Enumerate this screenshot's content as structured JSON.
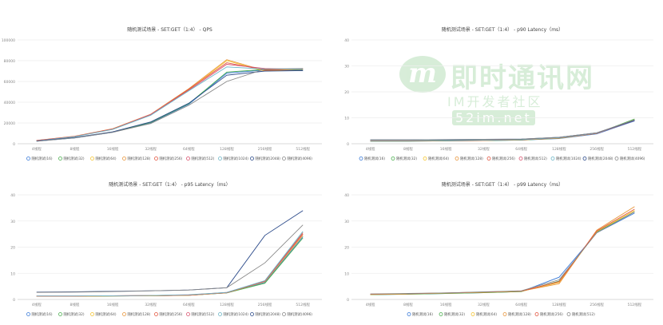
{
  "watermark": {
    "logo": "m",
    "title": "即时通讯网",
    "subtitle": "IM开发者社区",
    "badge": "52im.net"
  },
  "chart_data": [
    {
      "type": "line",
      "title": "随机测试场景 - SET:GET（1:4） - QPS",
      "categories": [
        "4线程",
        "8线程",
        "16线程",
        "32线程",
        "64线程",
        "128线程",
        "256线程",
        "512线程"
      ],
      "ylim": [
        0,
        100000
      ],
      "yticks": [
        "0",
        "20000",
        "40000",
        "60000",
        "80000",
        "100000"
      ],
      "series": [
        {
          "name": "随机测试(16)",
          "color": "#3b7bd8",
          "values": [
            2500,
            5500,
            11000,
            20000,
            38000,
            68000,
            71000,
            70500
          ]
        },
        {
          "name": "随机测试(32)",
          "color": "#4caf50",
          "values": [
            2600,
            5800,
            11200,
            20500,
            38500,
            69000,
            71500,
            71000
          ]
        },
        {
          "name": "随机测试(64)",
          "color": "#f5c531",
          "values": [
            3000,
            7000,
            14000,
            28000,
            52000,
            80000,
            70000,
            72000
          ]
        },
        {
          "name": "随机测试(128)",
          "color": "#e8963c",
          "values": [
            3200,
            7200,
            14500,
            28500,
            53000,
            81000,
            70500,
            72500
          ]
        },
        {
          "name": "随机测试(256)",
          "color": "#e2553f",
          "values": [
            3100,
            7100,
            14200,
            28000,
            52500,
            78000,
            71000,
            72000
          ]
        },
        {
          "name": "随机测试(512)",
          "color": "#d9536f",
          "values": [
            3000,
            7000,
            14000,
            28200,
            51500,
            76500,
            72500,
            71500
          ]
        },
        {
          "name": "随机测试(1024)",
          "color": "#6bb5c6",
          "values": [
            2800,
            6800,
            13800,
            27500,
            51000,
            74000,
            72000,
            71800
          ]
        },
        {
          "name": "随机测试(2048)",
          "color": "#2b4a8a",
          "values": [
            2600,
            6000,
            11500,
            21000,
            39000,
            66000,
            70000,
            70500
          ]
        },
        {
          "name": "随机测试(4096)",
          "color": "#888888",
          "values": [
            2400,
            5600,
            11000,
            19500,
            37000,
            60000,
            72000,
            72500
          ]
        }
      ]
    },
    {
      "type": "line",
      "title": "随机测试场景 - SET:GET（1:4） - p90 Latency（ms）",
      "categories": [
        "4线程",
        "8线程",
        "16线程",
        "32线程",
        "64线程",
        "128线程",
        "256线程",
        "512线程"
      ],
      "ylim": [
        0,
        40
      ],
      "yticks": [
        "0",
        "10",
        "20",
        "30",
        "40"
      ],
      "series": [
        {
          "name": "随机测试(16)",
          "color": "#3b7bd8",
          "values": [
            1.0,
            1.0,
            1.1,
            1.2,
            1.4,
            2.0,
            3.8,
            8.8
          ]
        },
        {
          "name": "随机测试(32)",
          "color": "#4caf50",
          "values": [
            1.0,
            1.0,
            1.1,
            1.2,
            1.4,
            2.1,
            4.0,
            9.5
          ]
        },
        {
          "name": "随机测试(64)",
          "color": "#f5c531",
          "values": [
            1.1,
            1.1,
            1.2,
            1.3,
            1.5,
            2.1,
            4.0,
            9.2
          ]
        },
        {
          "name": "随机测试(128)",
          "color": "#e8963c",
          "values": [
            1.1,
            1.1,
            1.2,
            1.3,
            1.5,
            2.2,
            4.0,
            9.0
          ]
        },
        {
          "name": "随机测试(256)",
          "color": "#e2553f",
          "values": [
            1.1,
            1.1,
            1.2,
            1.3,
            1.5,
            2.2,
            4.0,
            9.0
          ]
        },
        {
          "name": "随机测试(512)",
          "color": "#d9536f",
          "values": [
            1.2,
            1.2,
            1.3,
            1.4,
            1.6,
            2.3,
            4.1,
            9.0
          ]
        },
        {
          "name": "随机测试(1024)",
          "color": "#6bb5c6",
          "values": [
            1.2,
            1.2,
            1.3,
            1.4,
            1.6,
            2.3,
            4.1,
            9.1
          ]
        },
        {
          "name": "随机测试(2048)",
          "color": "#2b4a8a",
          "values": [
            1.5,
            1.5,
            1.6,
            1.7,
            1.8,
            2.5,
            4.2,
            9.0
          ]
        },
        {
          "name": "随机测试(4096)",
          "color": "#888888",
          "values": [
            1.5,
            1.5,
            1.6,
            1.7,
            1.8,
            2.5,
            4.2,
            9.2
          ]
        }
      ]
    },
    {
      "type": "line",
      "title": "随机测试场景 - SET:GET（1:4） - p95 Latency（ms）",
      "categories": [
        "4线程",
        "8线程",
        "16线程",
        "32线程",
        "64线程",
        "128线程",
        "256线程",
        "512线程"
      ],
      "ylim": [
        0,
        40
      ],
      "yticks": [
        "0",
        "10",
        "20",
        "30",
        "40"
      ],
      "series": [
        {
          "name": "随机测试(16)",
          "color": "#3b7bd8",
          "values": [
            1.2,
            1.2,
            1.3,
            1.4,
            1.6,
            2.5,
            6.5,
            24.0
          ]
        },
        {
          "name": "随机测试(32)",
          "color": "#4caf50",
          "values": [
            1.2,
            1.2,
            1.3,
            1.4,
            1.6,
            2.5,
            6.2,
            23.5
          ]
        },
        {
          "name": "随机测试(64)",
          "color": "#f5c531",
          "values": [
            1.2,
            1.2,
            1.3,
            1.4,
            1.6,
            2.6,
            6.8,
            24.5
          ]
        },
        {
          "name": "随机测试(128)",
          "color": "#e8963c",
          "values": [
            1.2,
            1.2,
            1.3,
            1.4,
            1.6,
            2.6,
            7.0,
            25.0
          ]
        },
        {
          "name": "随机测试(256)",
          "color": "#e2553f",
          "values": [
            1.3,
            1.3,
            1.4,
            1.5,
            1.7,
            2.6,
            7.0,
            25.5
          ]
        },
        {
          "name": "随机测试(512)",
          "color": "#d9536f",
          "values": [
            1.3,
            1.3,
            1.4,
            1.5,
            1.7,
            2.7,
            7.0,
            25.0
          ]
        },
        {
          "name": "随机测试(1024)",
          "color": "#6bb5c6",
          "values": [
            1.3,
            1.3,
            1.4,
            1.5,
            1.8,
            2.7,
            7.2,
            26.0
          ]
        },
        {
          "name": "随机测试(2048)",
          "color": "#2b4a8a",
          "values": [
            2.8,
            2.9,
            3.1,
            3.3,
            3.6,
            4.5,
            24.5,
            34.0
          ]
        },
        {
          "name": "随机测试(4096)",
          "color": "#888888",
          "values": [
            2.7,
            2.8,
            3.0,
            3.3,
            3.6,
            4.5,
            14.0,
            28.5
          ]
        }
      ]
    },
    {
      "type": "line",
      "title": "随机测试场景 - SET:GET（1:4） - p99 Latency（ms）",
      "categories": [
        "4线程",
        "8线程",
        "16线程",
        "32线程",
        "64线程",
        "128线程",
        "256线程",
        "512线程"
      ],
      "ylim": [
        0,
        40
      ],
      "yticks": [
        "0",
        "10",
        "20",
        "30",
        "40"
      ],
      "series": [
        {
          "name": "随机测试(16)",
          "color": "#3b7bd8",
          "values": [
            1.8,
            2.0,
            2.3,
            2.6,
            3.0,
            8.5,
            25.5,
            33.0
          ]
        },
        {
          "name": "随机测试(32)",
          "color": "#4caf50",
          "values": [
            1.8,
            2.0,
            2.3,
            2.6,
            3.0,
            7.0,
            25.8,
            33.5
          ]
        },
        {
          "name": "随机测试(64)",
          "color": "#f5c531",
          "values": [
            1.9,
            2.1,
            2.4,
            2.7,
            3.1,
            6.5,
            26.0,
            34.0
          ]
        },
        {
          "name": "随机测试(128)",
          "color": "#e8963c",
          "values": [
            2.0,
            2.2,
            2.4,
            2.8,
            3.2,
            6.0,
            26.5,
            35.5
          ]
        },
        {
          "name": "随机测试(256)",
          "color": "#e2553f",
          "values": [
            2.0,
            2.2,
            2.5,
            2.8,
            3.2,
            6.8,
            26.2,
            34.5
          ]
        },
        {
          "name": "随机测试(512)",
          "color": "#888888",
          "values": [
            2.1,
            2.3,
            2.5,
            2.9,
            3.3,
            7.5,
            25.5,
            33.5
          ]
        }
      ]
    }
  ]
}
